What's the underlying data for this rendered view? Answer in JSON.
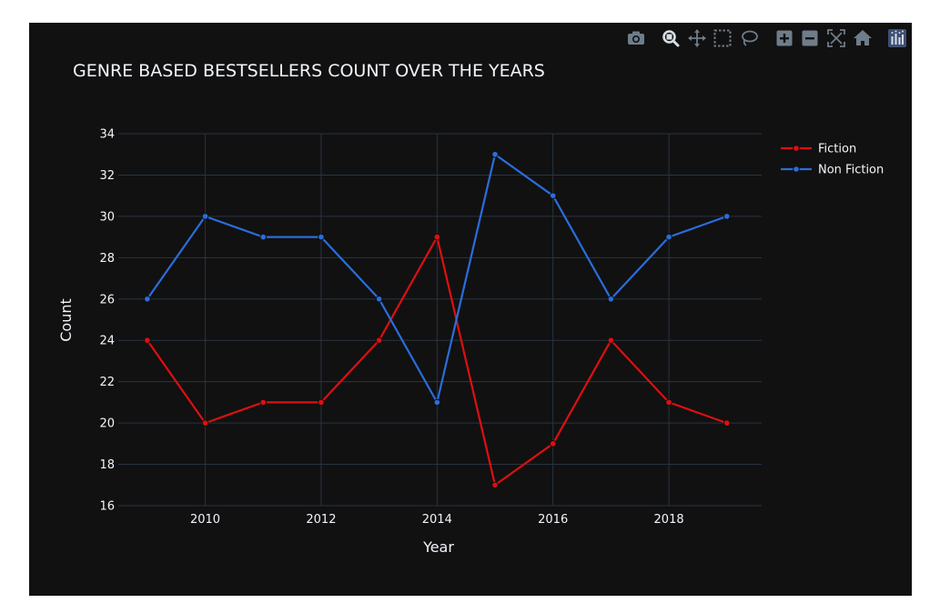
{
  "modebar": {
    "buttons": [
      {
        "name": "download-plot-button",
        "icon": "camera-icon"
      },
      {
        "name": "zoom-button",
        "icon": "zoom-icon"
      },
      {
        "name": "pan-button",
        "icon": "pan-icon"
      },
      {
        "name": "box-select-button",
        "icon": "box-select-icon"
      },
      {
        "name": "lasso-select-button",
        "icon": "lasso-icon"
      },
      {
        "name": "zoom-in-button",
        "icon": "zoom-in-icon"
      },
      {
        "name": "zoom-out-button",
        "icon": "zoom-out-icon"
      },
      {
        "name": "autoscale-button",
        "icon": "autoscale-icon"
      },
      {
        "name": "reset-axes-button",
        "icon": "home-icon"
      },
      {
        "name": "plotly-logo-button",
        "icon": "plotly-logo-icon"
      }
    ]
  },
  "colors": {
    "page_background": "#ffffff",
    "plot_background": "#111111",
    "grid": "#283442",
    "text": "#f2f5fa",
    "fiction": "#dd0f12",
    "non_fiction": "#2a6ddc"
  },
  "chart_data": {
    "type": "line",
    "title": "GENRE BASED BESTSELLERS COUNT OVER THE YEARS",
    "xlabel": "Year",
    "ylabel": "Count",
    "x": [
      2009,
      2010,
      2011,
      2012,
      2013,
      2014,
      2015,
      2016,
      2017,
      2018,
      2019
    ],
    "xlim": [
      2008.5,
      2019.6
    ],
    "ylim": [
      16,
      34
    ],
    "x_ticks": [
      2010,
      2012,
      2014,
      2016,
      2018
    ],
    "y_ticks": [
      16,
      18,
      20,
      22,
      24,
      26,
      28,
      30,
      32,
      34
    ],
    "grid": true,
    "legend_position": "top-right",
    "series": [
      {
        "name": "Fiction",
        "color": "#dd0f12",
        "values": [
          24,
          20,
          21,
          21,
          24,
          29,
          17,
          19,
          24,
          21,
          20
        ]
      },
      {
        "name": "Non Fiction",
        "color": "#2a6ddc",
        "values": [
          26,
          30,
          29,
          29,
          26,
          21,
          33,
          31,
          26,
          29,
          30
        ]
      }
    ]
  }
}
